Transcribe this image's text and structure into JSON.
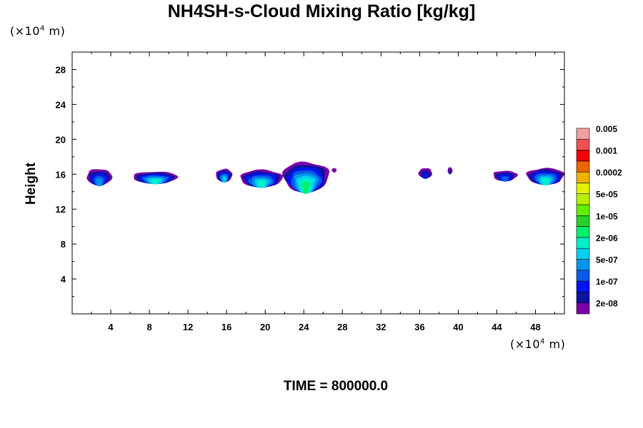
{
  "chart_data": {
    "type": "heatmap",
    "title": "NH4SH-s-Cloud Mixing Ratio [kg/kg]",
    "ylabel": "Height",
    "xlabel": "",
    "x_unit_prefix": "(×10",
    "x_unit_exp": "4",
    "x_unit_suffix": " m)",
    "y_unit_prefix": "(×10",
    "y_unit_exp": "4",
    "y_unit_suffix": " m)",
    "xlim": [
      0,
      51
    ],
    "ylim": [
      0,
      30
    ],
    "x_ticks": [
      4,
      8,
      12,
      16,
      20,
      24,
      28,
      32,
      36,
      40,
      44,
      48
    ],
    "x_tick_labels": [
      "4",
      "8",
      "12",
      "16",
      "20",
      "24",
      "28",
      "32",
      "36",
      "40",
      "44",
      "48"
    ],
    "y_ticks": [
      4,
      8,
      12,
      16,
      20,
      24,
      28
    ],
    "y_tick_labels": [
      "4",
      "8",
      "12",
      "16",
      "20",
      "24",
      "28"
    ],
    "colorbar": {
      "colors": [
        "#7b00a8",
        "#0a14a0",
        "#0014f0",
        "#0a5ae6",
        "#0096f0",
        "#00d2f0",
        "#00f0c8",
        "#00f070",
        "#28d228",
        "#64f000",
        "#b4f000",
        "#e6f000",
        "#f0b400",
        "#f06400",
        "#f00000",
        "#f05050",
        "#f0a0a0"
      ],
      "labels": [
        "2e-08",
        "1e-07",
        "5e-07",
        "2e-06",
        "1e-05",
        "5e-05",
        "0.0002",
        "0.001",
        "0.005"
      ],
      "label_band_index": [
        1,
        3,
        5,
        7,
        9,
        11,
        13,
        15,
        17
      ]
    },
    "cloud_blobs": [
      {
        "x0": 1.5,
        "x1": 4.1,
        "ybot": 14.7,
        "ytop": 16.6,
        "core": 4
      },
      {
        "x0": 6.3,
        "x1": 10.9,
        "ybot": 14.9,
        "ytop": 16.3,
        "core": 6
      },
      {
        "x0": 14.9,
        "x1": 16.6,
        "ybot": 15.1,
        "ytop": 16.6,
        "core": 5
      },
      {
        "x0": 17.4,
        "x1": 21.8,
        "ybot": 14.5,
        "ytop": 16.5,
        "core": 6
      },
      {
        "x0": 21.8,
        "x1": 26.6,
        "ybot": 13.9,
        "ytop": 17.4,
        "core": 7
      },
      {
        "x0": 26.9,
        "x1": 27.4,
        "ybot": 16.2,
        "ytop": 16.7,
        "core": 0
      },
      {
        "x0": 35.9,
        "x1": 37.3,
        "ybot": 15.5,
        "ytop": 16.7,
        "core": 2
      },
      {
        "x0": 38.9,
        "x1": 39.4,
        "ybot": 16.0,
        "ytop": 16.8,
        "core": 1
      },
      {
        "x0": 43.6,
        "x1": 46.1,
        "ybot": 15.2,
        "ytop": 16.4,
        "core": 3
      },
      {
        "x0": 47.1,
        "x1": 51.0,
        "ybot": 14.8,
        "ytop": 16.7,
        "core": 6
      }
    ]
  },
  "time_label": "TIME = 800000.0"
}
